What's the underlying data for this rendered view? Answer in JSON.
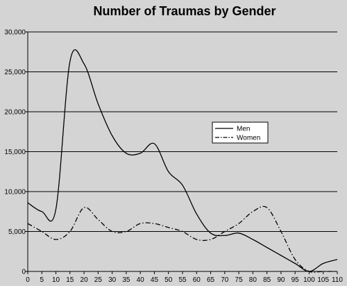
{
  "chart_data": {
    "type": "line",
    "title": "Number of Traumas by Gender",
    "xlabel": "",
    "ylabel": "",
    "x": [
      0,
      5,
      10,
      15,
      20,
      25,
      30,
      35,
      40,
      45,
      50,
      55,
      60,
      65,
      70,
      75,
      80,
      85,
      90,
      95,
      100,
      105,
      110
    ],
    "xlim": [
      0,
      110
    ],
    "ylim": [
      0,
      30000
    ],
    "y_ticks": [
      0,
      5000,
      10000,
      15000,
      20000,
      25000,
      30000
    ],
    "y_tick_labels": [
      "0",
      "5,000",
      "10,000",
      "15,000",
      "20,000",
      "25,000",
      "30,000"
    ],
    "x_tick_labels": [
      "0",
      "5",
      "10",
      "15",
      "20",
      "25",
      "30",
      "35",
      "40",
      "45",
      "50",
      "55",
      "60",
      "65",
      "70",
      "75",
      "80",
      "85",
      "90",
      "95",
      "100",
      "105",
      "110"
    ],
    "grid": "horizontal",
    "legend_position": "right",
    "series": [
      {
        "name": "Men",
        "style": "solid",
        "color": "#000000",
        "values": [
          8600,
          7500,
          7800,
          26300,
          26000,
          21000,
          17000,
          14800,
          14800,
          16000,
          12500,
          10800,
          7200,
          4800,
          4500,
          4800,
          4000,
          3000,
          2000,
          1000,
          0,
          1000,
          1500
        ]
      },
      {
        "name": "Women",
        "style": "dashdot",
        "color": "#000000",
        "values": [
          6000,
          5000,
          4000,
          5000,
          8000,
          6500,
          5000,
          5000,
          6000,
          6000,
          5500,
          5000,
          4000,
          4000,
          5000,
          6000,
          7500,
          8000,
          5000,
          1500,
          0,
          0,
          0
        ]
      }
    ]
  }
}
